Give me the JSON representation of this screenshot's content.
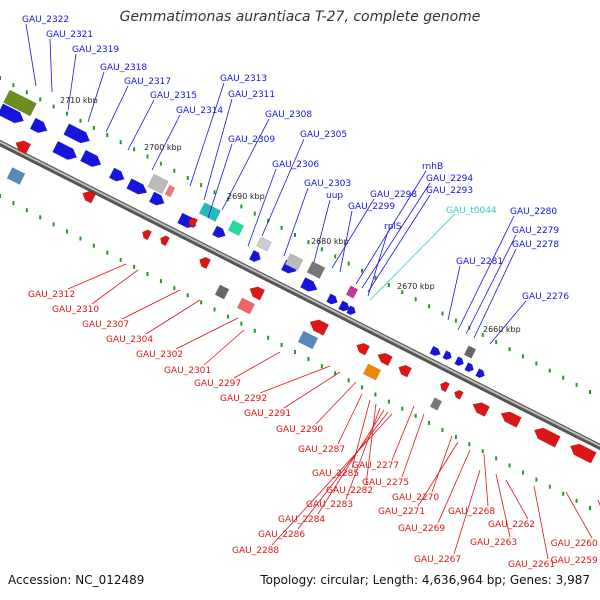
{
  "title": "Gemmatimonas aurantiaca T-27, complete genome",
  "footer": {
    "accession": "Accession: NC_012489",
    "stats": "Topology: circular; Length: 4,636,964 bp; Genes: 3,987"
  },
  "colors": {
    "plus_strand": "#1515dd",
    "minus_strand": "#dd1515",
    "trna": "#33cccc",
    "backbone": "#777777",
    "tick": "#229922"
  },
  "scale_labels": [
    "2710 kbp",
    "2700 kbp",
    "2690 kbp",
    "2680 kbp",
    "2670 kbp",
    "2660 kbp"
  ],
  "plus_labels": [
    "GAU_2322",
    "GAU_2321",
    "GAU_2319",
    "GAU_2318",
    "GAU_2317",
    "GAU_2315",
    "GAU_2314",
    "GAU_2313",
    "GAU_2311",
    "GAU_2308",
    "GAU_2309",
    "GAU_2305",
    "GAU_2306",
    "GAU_2303",
    "uup",
    "GAU_2298",
    "GAU_2299",
    "rnhB",
    "GAU_2294",
    "GAU_2293",
    "rplS",
    "GAU_2280",
    "GAU_2279",
    "GAU_2278",
    "GAU_2281",
    "GAU_2276"
  ],
  "trna_labels": [
    "GAU_t0044"
  ],
  "minus_labels": [
    "GAU_2312",
    "GAU_2310",
    "GAU_2307",
    "GAU_2304",
    "GAU_2302",
    "GAU_2301",
    "GAU_2297",
    "GAU_2292",
    "GAU_2291",
    "GAU_2290",
    "GAU_2287",
    "GAU_2285",
    "GAU_2282",
    "GAU_2283",
    "GAU_2284",
    "GAU_2286",
    "GAU_2288",
    "GAU_2277",
    "GAU_2275",
    "GAU_2270",
    "GAU_2271",
    "GAU_2269",
    "GAU_2268",
    "GAU_2267",
    "GAU_2263",
    "GAU_2262",
    "GAU_2261",
    "GAU_2260",
    "GAU_2259"
  ]
}
